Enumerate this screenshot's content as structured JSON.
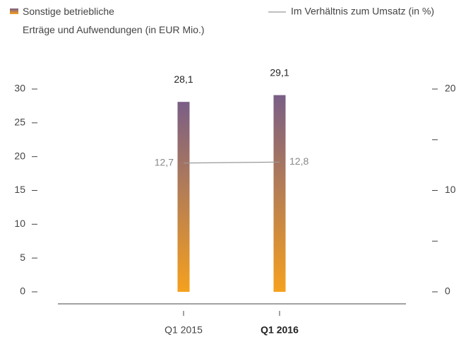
{
  "chart_data": {
    "type": "bar",
    "categories": [
      "Q1 2015",
      "Q1 2016"
    ],
    "highlight_category": 1,
    "series": [
      {
        "name": "Sonstige betriebliche Erträge und Aufwendungen (in EUR Mio.)",
        "color": [
          "#f5a01e",
          "#7a5e86"
        ],
        "values": [
          28.1,
          29.1
        ],
        "value_labels": [
          "28,1",
          "29,1"
        ]
      },
      {
        "name": "Im Verhältnis zum Umsatz (in %)",
        "type": "line",
        "axis": "y2",
        "color": "#999999",
        "values": [
          12.7,
          12.8
        ],
        "value_labels": [
          "12,7",
          "12,8"
        ]
      }
    ],
    "ylim": [
      0,
      30
    ],
    "yticks": [
      0,
      5,
      10,
      15,
      20,
      25,
      30
    ],
    "y2lim": [
      0,
      20
    ],
    "y2ticks": [
      0,
      10,
      20
    ],
    "y2minor_ticks": [
      5,
      15
    ]
  }
}
